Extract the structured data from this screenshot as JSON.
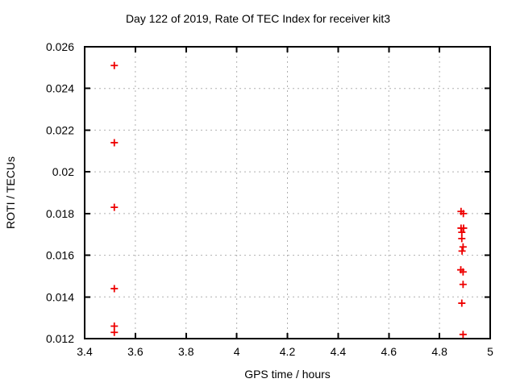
{
  "chart_data": {
    "type": "scatter",
    "title": "Day 122 of 2019, Rate Of TEC Index for receiver kit3",
    "xlabel": "GPS time / hours",
    "ylabel": "ROTI / TECUs",
    "xlim": [
      3.4,
      5.0
    ],
    "ylim": [
      0.012,
      0.026
    ],
    "grid": true,
    "legend": "none",
    "marker": "plus",
    "marker_color": "#ee0000",
    "grid_color": "#b0b0b0",
    "axis_color": "#000000",
    "xticks": [
      {
        "v": 3.4,
        "label": "3.4"
      },
      {
        "v": 3.6,
        "label": "3.6"
      },
      {
        "v": 3.8,
        "label": "3.8"
      },
      {
        "v": 4.0,
        "label": "4"
      },
      {
        "v": 4.2,
        "label": "4.2"
      },
      {
        "v": 4.4,
        "label": "4.4"
      },
      {
        "v": 4.6,
        "label": "4.6"
      },
      {
        "v": 4.8,
        "label": "4.8"
      },
      {
        "v": 5.0,
        "label": "5"
      }
    ],
    "yticks": [
      {
        "v": 0.012,
        "label": "0.012"
      },
      {
        "v": 0.014,
        "label": "0.014"
      },
      {
        "v": 0.016,
        "label": "0.016"
      },
      {
        "v": 0.018,
        "label": "0.018"
      },
      {
        "v": 0.02,
        "label": "0.02"
      },
      {
        "v": 0.022,
        "label": "0.022"
      },
      {
        "v": 0.024,
        "label": "0.024"
      },
      {
        "v": 0.026,
        "label": "0.026"
      }
    ],
    "series": [
      {
        "name": "ROTI",
        "points": [
          [
            3.517,
            0.0251
          ],
          [
            3.517,
            0.0214
          ],
          [
            3.517,
            0.0183
          ],
          [
            3.517,
            0.0144
          ],
          [
            3.517,
            0.0126
          ],
          [
            3.517,
            0.0123
          ],
          [
            4.885,
            0.0181
          ],
          [
            4.894,
            0.018
          ],
          [
            4.885,
            0.0173
          ],
          [
            4.895,
            0.0173
          ],
          [
            4.888,
            0.0171
          ],
          [
            4.888,
            0.0168
          ],
          [
            4.893,
            0.0164
          ],
          [
            4.889,
            0.0162
          ],
          [
            4.884,
            0.0153
          ],
          [
            4.893,
            0.0152
          ],
          [
            4.893,
            0.0146
          ],
          [
            4.888,
            0.0137
          ],
          [
            4.893,
            0.0122
          ]
        ]
      }
    ]
  }
}
